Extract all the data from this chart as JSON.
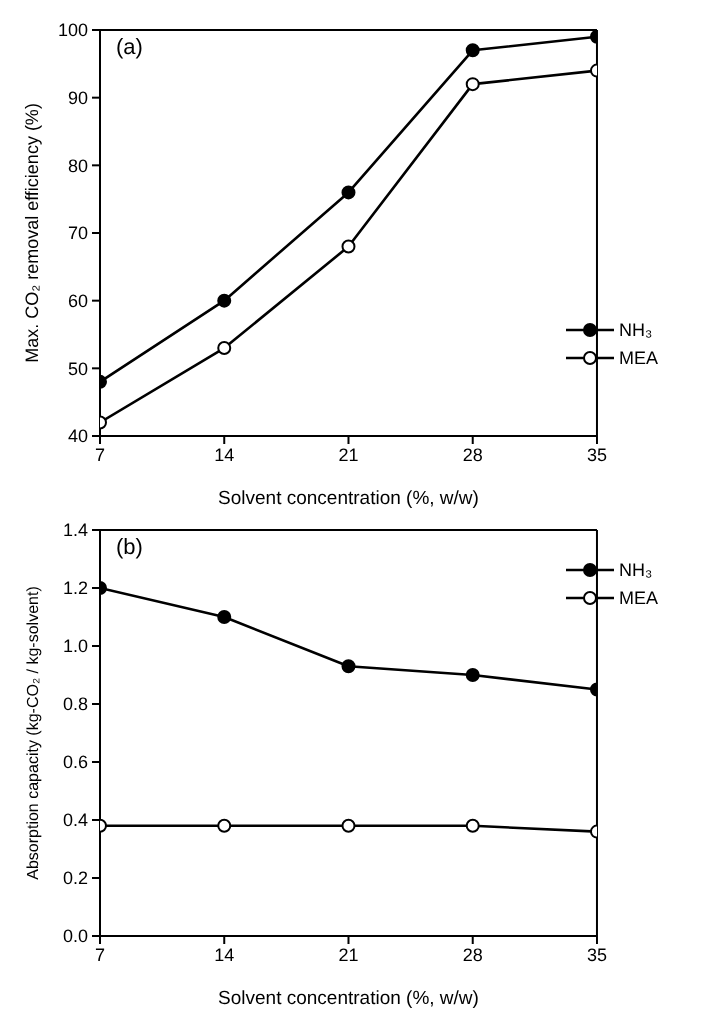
{
  "chart_data": [
    {
      "type": "line",
      "annotations": [
        "(a)"
      ],
      "xlabel": "Solvent concentration (%, w/w)",
      "ylabel": "Max. CO₂ removal efficiency (%)",
      "x": [
        7,
        14,
        21,
        28,
        35
      ],
      "xlim": [
        7,
        35
      ],
      "xticks": [
        7,
        14,
        21,
        28,
        35
      ],
      "ylim": [
        40,
        100
      ],
      "yticks": [
        40,
        50,
        60,
        70,
        80,
        90,
        100
      ],
      "marker": "circle",
      "legend": "right",
      "grid": false,
      "series": [
        {
          "name": "NH₃",
          "color": "#000000",
          "values": [
            48,
            60,
            76,
            97,
            99
          ]
        },
        {
          "name": "MEA",
          "color": "#000000",
          "values": [
            42,
            53,
            68,
            92,
            94
          ]
        }
      ]
    },
    {
      "type": "line",
      "annotations": [
        "(b)"
      ],
      "xlabel": "Solvent concentration (%, w/w)",
      "ylabel": "Absorption capacity (kg-CO₂ / kg-solvent)",
      "x": [
        7,
        14,
        21,
        28,
        35
      ],
      "xlim": [
        7,
        35
      ],
      "xticks": [
        7,
        14,
        21,
        28,
        35
      ],
      "ylim": [
        0,
        1.4
      ],
      "yticks": [
        {
          "value": 0,
          "label": "0.0"
        },
        0.2,
        0.4,
        0.6,
        0.8,
        {
          "value": 1,
          "label": "1.0"
        },
        1.2,
        1.4
      ],
      "marker": "circle",
      "legend": "top right",
      "grid": false,
      "series": [
        {
          "name": "NH₃",
          "color": "#000000",
          "values": [
            1.2,
            1.1,
            0.93,
            0.9,
            0.85
          ]
        },
        {
          "name": "MEA",
          "color": "#000000",
          "values": [
            0.38,
            0.38,
            0.38,
            0.38,
            0.36
          ]
        }
      ]
    }
  ]
}
